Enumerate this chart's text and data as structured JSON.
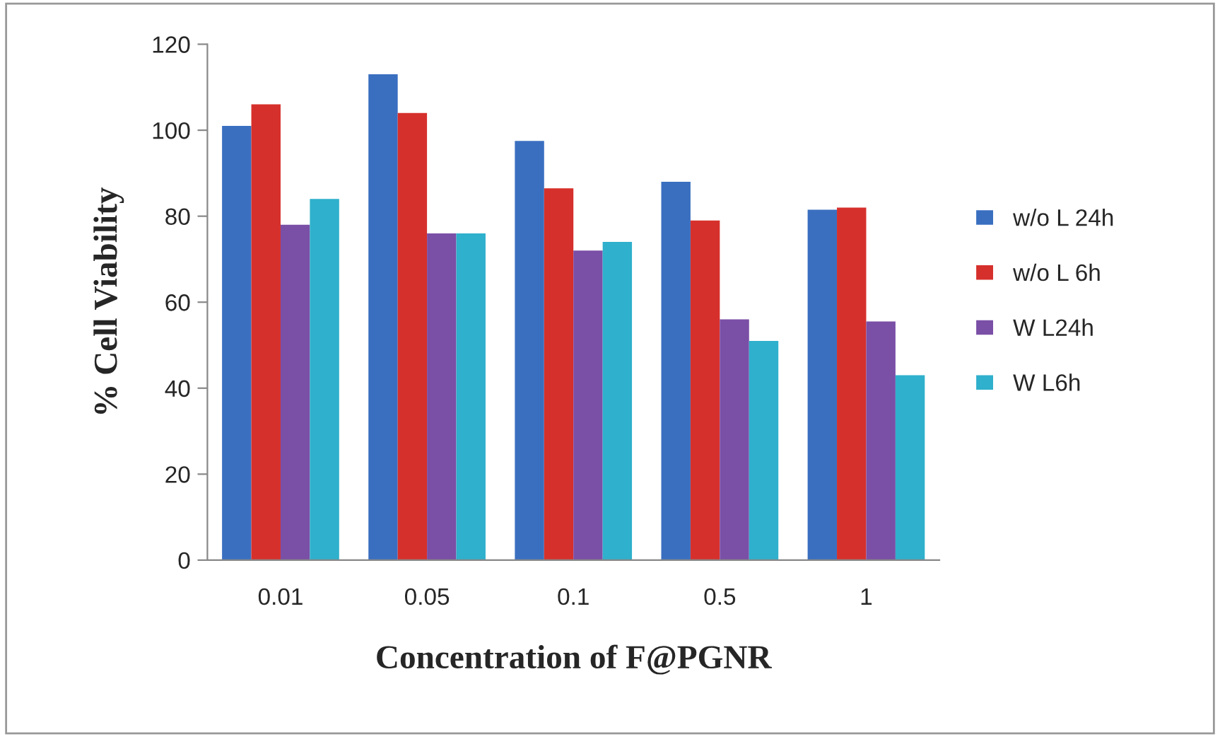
{
  "chart_data": {
    "type": "bar",
    "xlabel": "Concentration of F@PGNR",
    "ylabel": "% Cell Viability",
    "categories": [
      "0.01",
      "0.05",
      "0.1",
      "0.5",
      "1"
    ],
    "series": [
      {
        "name": "w/o L 24h",
        "color": "#3a6fc0",
        "values": [
          101,
          113,
          97.5,
          88,
          81.5
        ]
      },
      {
        "name": "w/o L 6h",
        "color": "#d6302c",
        "values": [
          106,
          104,
          86.5,
          79,
          82
        ]
      },
      {
        "name": "W L24h",
        "color": "#7a4fa6",
        "values": [
          78,
          76,
          72,
          56,
          55.5
        ]
      },
      {
        "name": "W L6h",
        "color": "#2fb0cc",
        "values": [
          84,
          76,
          74,
          51,
          43
        ]
      }
    ],
    "ylim": [
      0,
      120
    ],
    "yticks": [
      0,
      20,
      40,
      60,
      80,
      100,
      120
    ],
    "grid": false,
    "legend": "right"
  }
}
